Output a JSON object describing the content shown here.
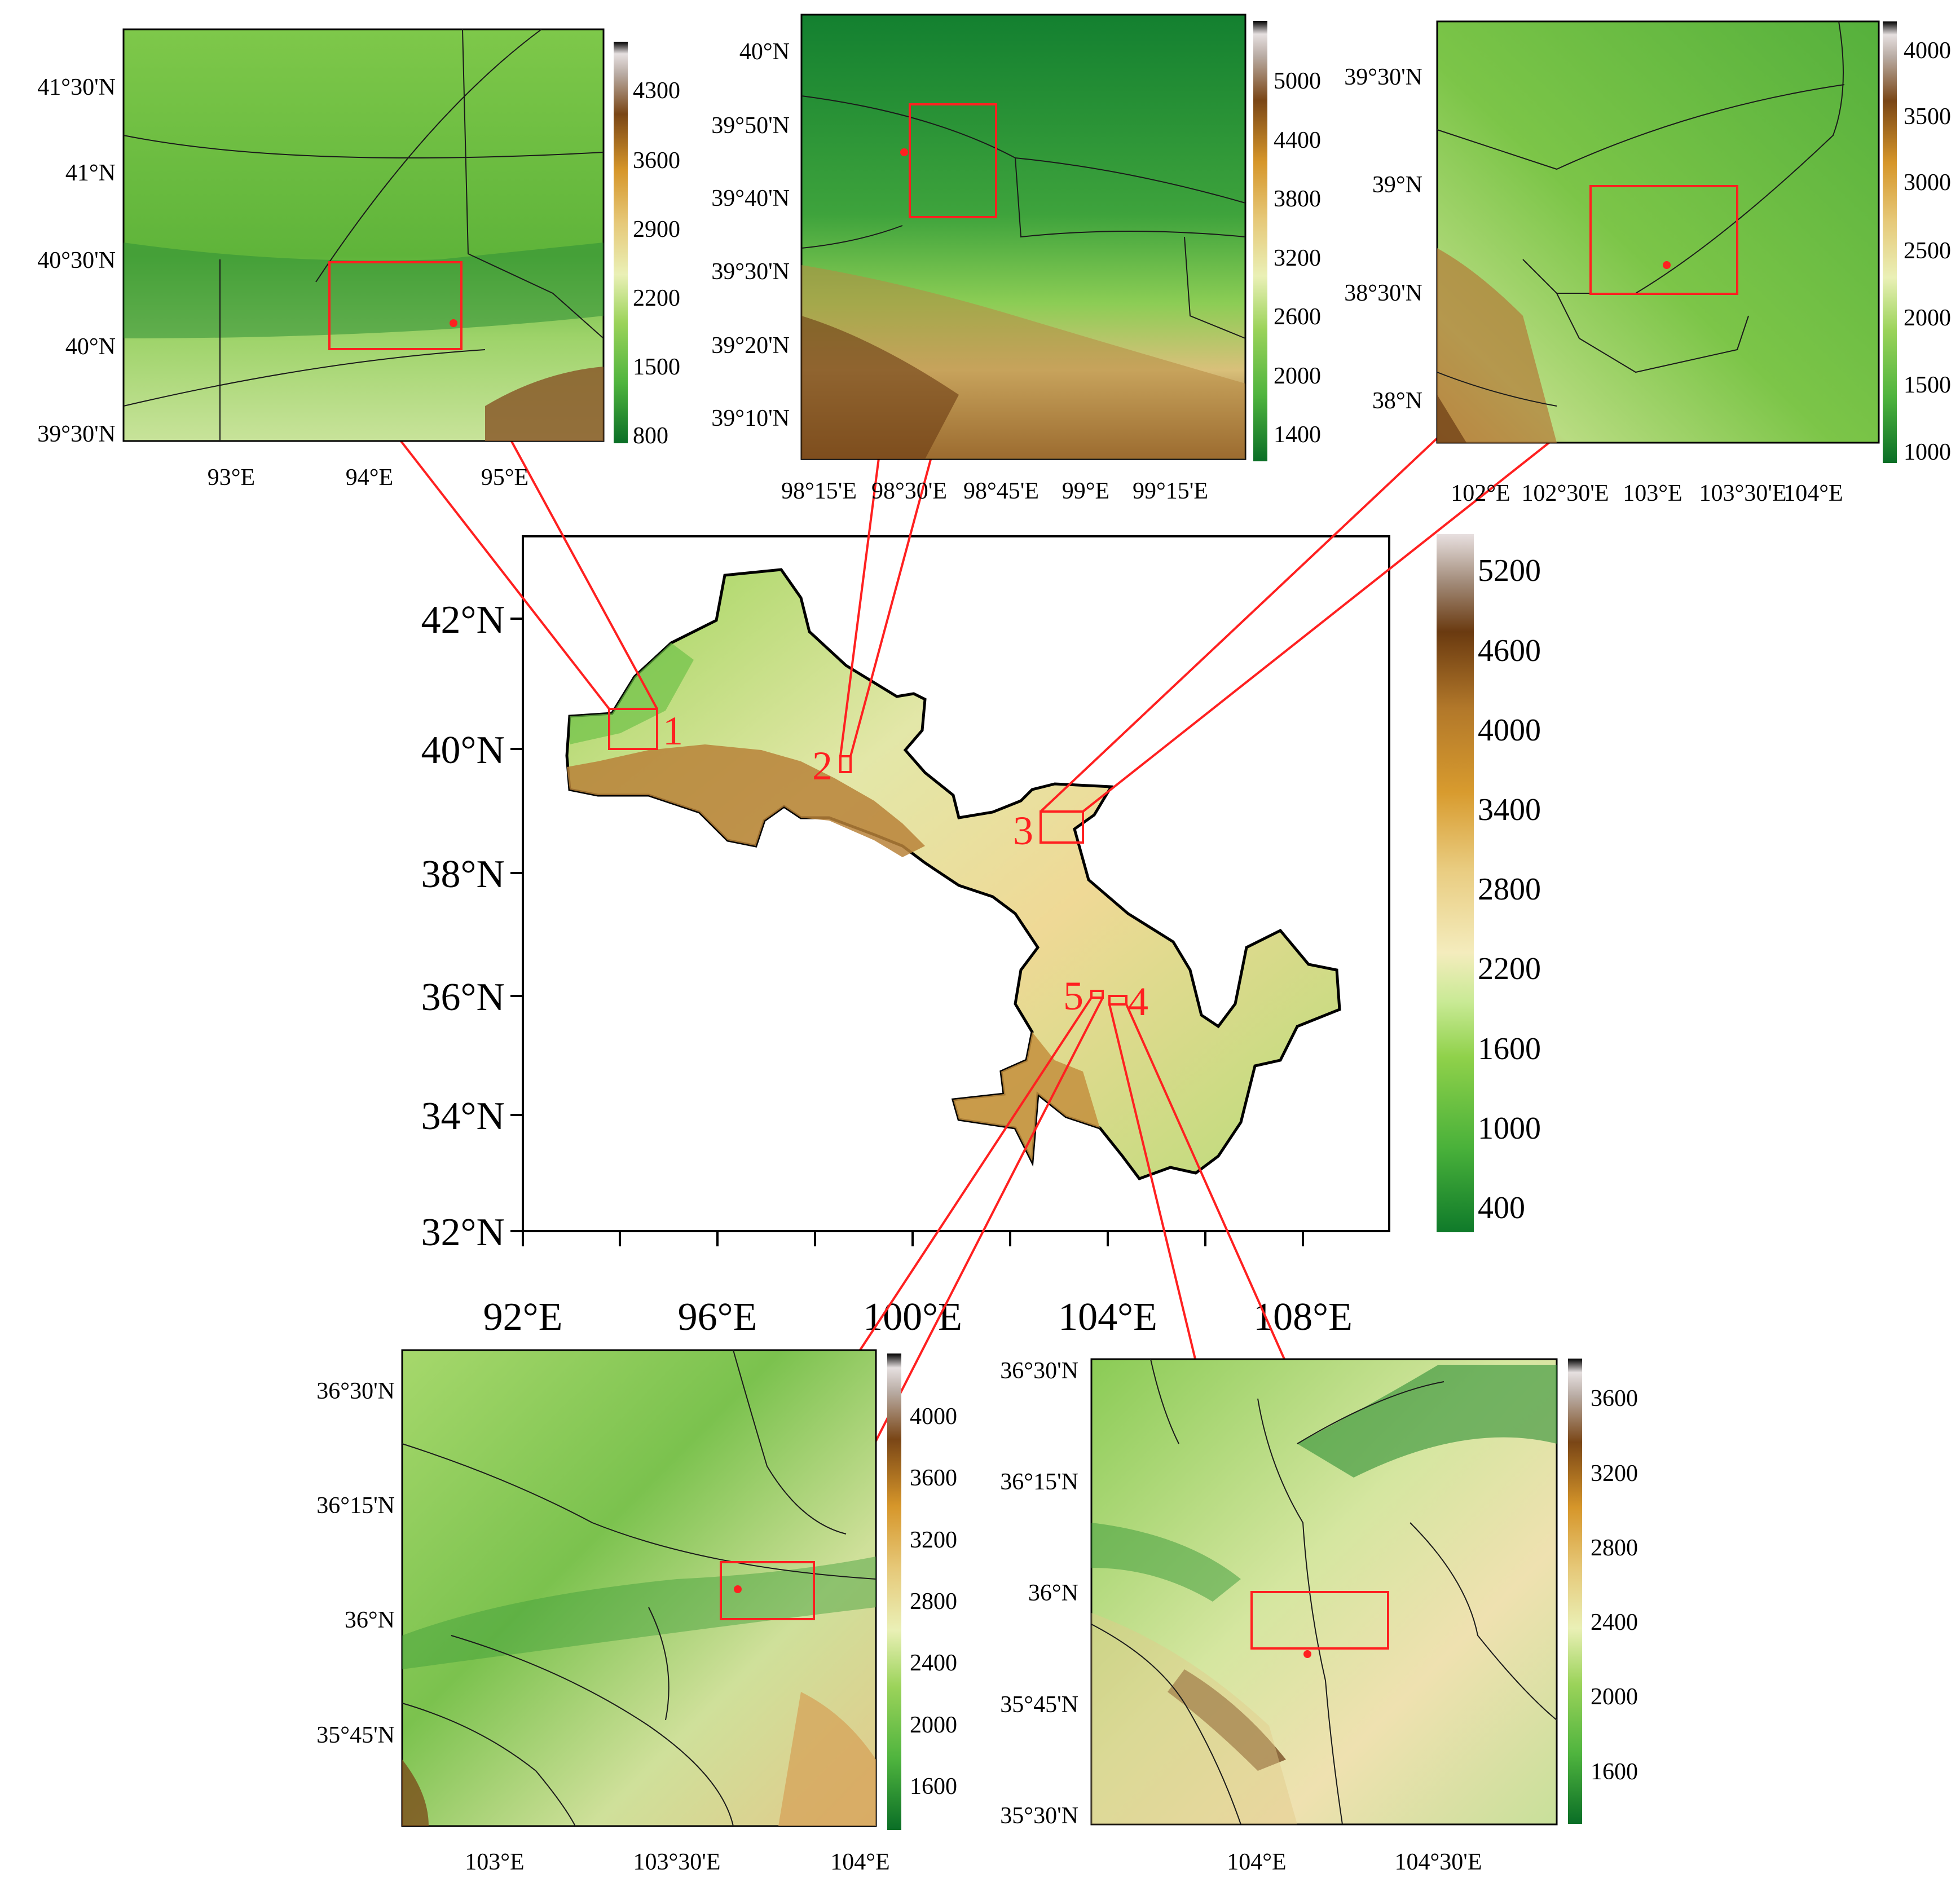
{
  "main_map": {
    "lat_labels": [
      "42°N",
      "40°N",
      "38°N",
      "36°N",
      "34°N",
      "32°N"
    ],
    "lon_labels": [
      "92°E",
      "96°E",
      "100°E",
      "104°E",
      "108°E"
    ],
    "colorbar_ticks": [
      "5200",
      "4600",
      "4000",
      "3400",
      "2800",
      "2200",
      "1600",
      "1000",
      "400"
    ],
    "site_labels": [
      "1",
      "2",
      "3",
      "4",
      "5"
    ]
  },
  "inset1": {
    "lat_labels": [
      "41°30'N",
      "41°N",
      "40°30'N",
      "40°N",
      "39°30'N"
    ],
    "lon_labels": [
      "93°E",
      "94°E",
      "95°E"
    ],
    "colorbar_ticks": [
      "4300",
      "3600",
      "2900",
      "2200",
      "1500",
      "800"
    ]
  },
  "inset2": {
    "lat_labels": [
      "40°N",
      "39°50'N",
      "39°40'N",
      "39°30'N",
      "39°20'N",
      "39°10'N"
    ],
    "lon_labels": [
      "98°15'E",
      "98°30'E",
      "98°45'E",
      "99°E",
      "99°15'E"
    ],
    "colorbar_ticks": [
      "5000",
      "4400",
      "3800",
      "3200",
      "2600",
      "2000",
      "1400"
    ]
  },
  "inset3": {
    "lat_labels": [
      "39°30'N",
      "39°N",
      "38°30'N",
      "38°N"
    ],
    "lon_labels": [
      "102°E",
      "102°30'E",
      "103°E",
      "103°30'E",
      "104°E"
    ],
    "colorbar_ticks": [
      "4000",
      "3500",
      "3000",
      "2500",
      "2000",
      "1500",
      "1000"
    ]
  },
  "inset5": {
    "lat_labels": [
      "36°30'N",
      "36°15'N",
      "36°N",
      "35°45'N"
    ],
    "lon_labels": [
      "103°E",
      "103°30'E",
      "104°E"
    ],
    "colorbar_ticks": [
      "4000",
      "3600",
      "3200",
      "2800",
      "2400",
      "2000",
      "1600"
    ]
  },
  "inset4": {
    "lat_labels": [
      "36°30'N",
      "36°15'N",
      "36°N",
      "35°45'N",
      "35°30'N"
    ],
    "lon_labels": [
      "104°E",
      "104°30'E"
    ],
    "colorbar_ticks": [
      "3600",
      "3200",
      "2800",
      "2400",
      "2000",
      "1600"
    ]
  },
  "colors": {
    "highlight": "#ff2020",
    "terrain_low": "#0f7a2a",
    "terrain_mid": "#8fd14a",
    "terrain_pale": "#f2e6b0",
    "terrain_high": "#6a3a10"
  }
}
